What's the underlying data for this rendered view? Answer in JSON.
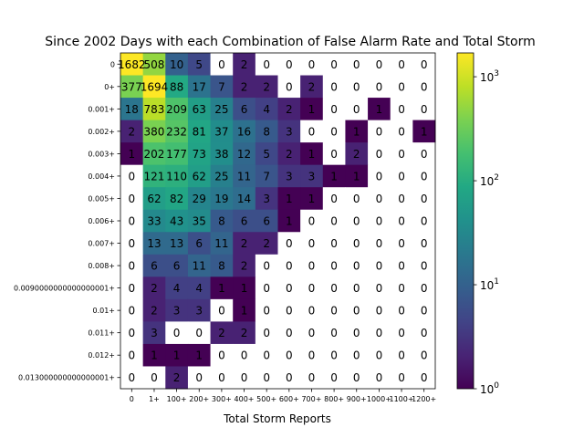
{
  "chart_data": {
    "type": "heatmap",
    "title": "Since 2002 Days with each Combination of False Alarm Rate and Total Storm",
    "xlabel": "Total Storm Reports",
    "ylabel": "",
    "x_categories": [
      "0",
      "1+",
      "100+",
      "200+",
      "300+",
      "400+",
      "500+",
      "600+",
      "700+",
      "800+",
      "900+",
      "1000+",
      "1100+",
      "1200+"
    ],
    "y_categories": [
      "0",
      "0+",
      "0.001+",
      "0.002+",
      "0.003+",
      "0.004+",
      "0.005+",
      "0.006+",
      "0.007+",
      "0.008+",
      "0.0090000000000000001+",
      "0.01+",
      "0.011+",
      "0.012+",
      "0.013000000000000001+"
    ],
    "values": [
      [
        1682,
        508,
        10,
        5,
        0,
        2,
        0,
        0,
        0,
        0,
        0,
        0,
        0,
        0
      ],
      [
        377,
        1694,
        88,
        17,
        7,
        2,
        2,
        0,
        2,
        0,
        0,
        0,
        0,
        0
      ],
      [
        18,
        783,
        209,
        63,
        25,
        6,
        4,
        2,
        1,
        0,
        0,
        1,
        0,
        0
      ],
      [
        2,
        380,
        232,
        81,
        37,
        16,
        8,
        3,
        0,
        0,
        1,
        0,
        0,
        1
      ],
      [
        1,
        202,
        177,
        73,
        38,
        12,
        5,
        2,
        1,
        0,
        2,
        0,
        0,
        0
      ],
      [
        0,
        121,
        110,
        62,
        25,
        11,
        7,
        3,
        3,
        1,
        1,
        0,
        0,
        0
      ],
      [
        0,
        62,
        82,
        29,
        19,
        14,
        3,
        1,
        1,
        0,
        0,
        0,
        0,
        0
      ],
      [
        0,
        33,
        43,
        35,
        8,
        6,
        6,
        1,
        0,
        0,
        0,
        0,
        0,
        0
      ],
      [
        0,
        13,
        13,
        6,
        11,
        2,
        2,
        0,
        0,
        0,
        0,
        0,
        0,
        0
      ],
      [
        0,
        6,
        6,
        11,
        8,
        2,
        0,
        0,
        0,
        0,
        0,
        0,
        0,
        0
      ],
      [
        0,
        2,
        4,
        4,
        1,
        1,
        0,
        0,
        0,
        0,
        0,
        0,
        0,
        0
      ],
      [
        0,
        2,
        3,
        3,
        0,
        1,
        0,
        0,
        0,
        0,
        0,
        0,
        0,
        0
      ],
      [
        0,
        3,
        0,
        0,
        2,
        2,
        0,
        0,
        0,
        0,
        0,
        0,
        0,
        0
      ],
      [
        0,
        1,
        1,
        1,
        0,
        0,
        0,
        0,
        0,
        0,
        0,
        0,
        0,
        0
      ],
      [
        0,
        0,
        2,
        0,
        0,
        0,
        0,
        0,
        0,
        0,
        0,
        0,
        0,
        0
      ]
    ],
    "color_scale": "log",
    "colormap": "viridis",
    "clim": [
      1,
      1694
    ],
    "colorbar_ticks": [
      {
        "value": 1,
        "base": "10",
        "exp": "0"
      },
      {
        "value": 10,
        "base": "10",
        "exp": "1"
      },
      {
        "value": 100,
        "base": "10",
        "exp": "2"
      },
      {
        "value": 1000,
        "base": "10",
        "exp": "3"
      }
    ],
    "zero_color": "#ffffff"
  }
}
